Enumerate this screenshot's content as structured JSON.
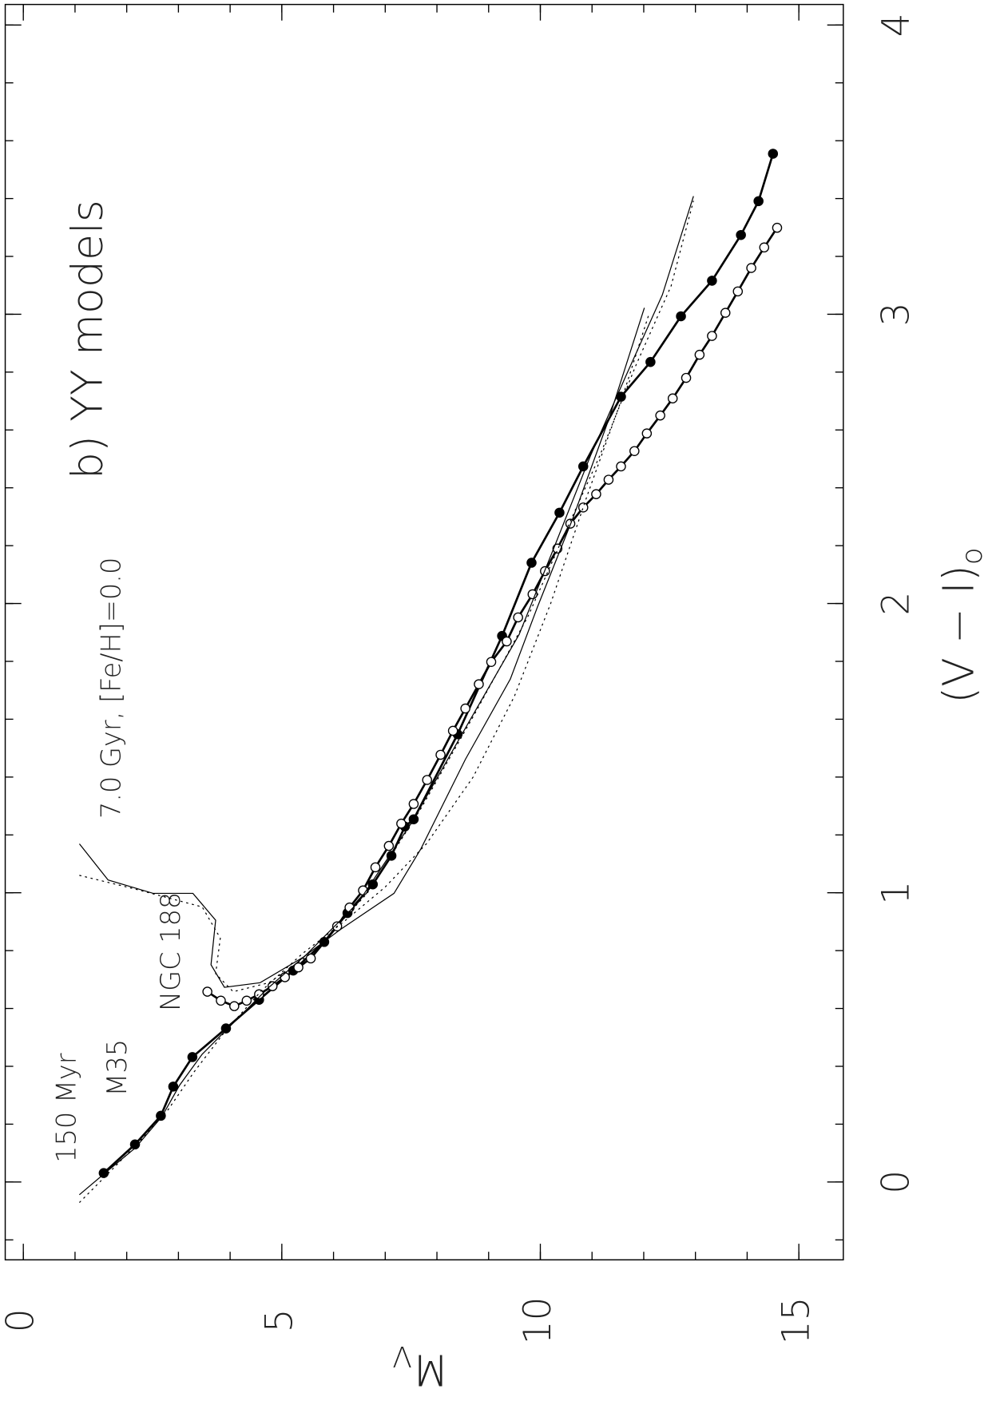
{
  "chart_data": {
    "type": "line",
    "title": "b) YY models",
    "annotations": [
      "7.0 Gyr, [Fe/H]=0.0",
      "NGC 188",
      "150 Myr",
      "M35"
    ],
    "xlabel": "M",
    "xlabel_sub": "V",
    "ylabel": "(V − I)",
    "ylabel_sub": "o",
    "xlim": [
      -0.35,
      15.86
    ],
    "ylim": [
      -0.269,
      4.071
    ],
    "xticks": [
      0,
      5,
      10,
      15
    ],
    "xminorticks": [
      0,
      1,
      2,
      3,
      4,
      5,
      6,
      7,
      8,
      9,
      10,
      11,
      12,
      13,
      14,
      15
    ],
    "yticks": [
      0,
      1,
      2,
      3,
      4
    ],
    "yminorticks": [
      -0.2,
      0,
      0.2,
      0.4,
      0.6,
      0.8,
      1,
      1.2,
      1.4,
      1.6,
      1.8,
      2,
      2.2,
      2.4,
      2.6,
      2.8,
      3,
      3.2,
      3.4,
      3.6,
      3.8,
      4
    ],
    "series": [
      {
        "color": "#000",
        "marker": "filled",
        "dash": "solid",
        "x": [
          1.555,
          2.16,
          2.66,
          2.9,
          3.27,
          3.92,
          4.56,
          5.22,
          5.82,
          6.27,
          6.76,
          7.12,
          7.38,
          7.55,
          8.4,
          9.26,
          9.83,
          10.37,
          10.83,
          11.56,
          12.13,
          12.72,
          13.32,
          13.88,
          14.22,
          14.5
        ],
        "values": [
          0.031,
          0.13,
          0.229,
          0.33,
          0.432,
          0.531,
          0.63,
          0.731,
          0.83,
          0.93,
          1.029,
          1.128,
          1.229,
          1.254,
          1.548,
          1.888,
          2.141,
          2.314,
          2.474,
          2.715,
          2.835,
          2.993,
          3.116,
          3.274,
          3.391,
          3.555
        ]
      },
      {
        "color": "#000",
        "marker": "open",
        "dash": "solid",
        "x": [
          3.56,
          3.82,
          4.08,
          4.32,
          4.56,
          4.82,
          5.06,
          5.32,
          5.56,
          6.07,
          6.31,
          6.57,
          6.81,
          7.07,
          7.31,
          7.55,
          7.81,
          8.07,
          8.31,
          8.55,
          8.81,
          9.05,
          9.35,
          9.57,
          9.85,
          10.09,
          10.33,
          10.58,
          10.83,
          11.08,
          11.32,
          11.56,
          11.82,
          12.06,
          12.32,
          12.56,
          12.82,
          13.08,
          13.32,
          13.58,
          13.82,
          14.08,
          14.33,
          14.58
        ],
        "values": [
          0.658,
          0.627,
          0.608,
          0.627,
          0.649,
          0.677,
          0.708,
          0.742,
          0.773,
          0.884,
          0.949,
          1.008,
          1.088,
          1.162,
          1.239,
          1.307,
          1.39,
          1.477,
          1.56,
          1.637,
          1.721,
          1.798,
          1.869,
          1.952,
          2.032,
          2.112,
          2.19,
          2.276,
          2.332,
          2.378,
          2.428,
          2.474,
          2.527,
          2.588,
          2.65,
          2.709,
          2.78,
          2.86,
          2.925,
          3.005,
          3.079,
          3.16,
          3.231,
          3.299
        ]
      },
      {
        "color": "#000",
        "marker": "none",
        "dash": "solid",
        "x": [
          1.09,
          1.64,
          2.16,
          2.68,
          3.02,
          3.46,
          4.06,
          4.75,
          5.44,
          6.14,
          7.17,
          7.69,
          8.55,
          9.42,
          9.94,
          10.63,
          11.32,
          12.01
        ],
        "values": [
          -0.043,
          0.04,
          0.117,
          0.226,
          0.334,
          0.442,
          0.55,
          0.673,
          0.781,
          0.874,
          0.998,
          1.152,
          1.461,
          1.739,
          1.986,
          2.295,
          2.635,
          3.021
        ]
      },
      {
        "color": "#000",
        "marker": "none",
        "dash": "dotted",
        "x": [
          1.09,
          1.7,
          2.3,
          2.8,
          3.3,
          3.9,
          4.6,
          5.4,
          6.2,
          7.0,
          7.8,
          8.7,
          9.5,
          10.2,
          10.9,
          11.6,
          12.1
        ],
        "values": [
          -0.07,
          0.04,
          0.15,
          0.25,
          0.38,
          0.52,
          0.66,
          0.79,
          0.9,
          1.02,
          1.17,
          1.4,
          1.68,
          2.0,
          2.37,
          2.72,
          3.0
        ]
      },
      {
        "color": "#000",
        "marker": "none",
        "dash": "solid",
        "x": [
          1.09,
          1.64,
          2.51,
          3.28,
          3.72,
          3.63,
          3.89,
          4.58,
          5.44,
          6.48,
          7.52,
          8.55,
          9.59,
          10.28,
          10.97,
          11.66,
          12.36,
          12.96
        ],
        "values": [
          1.168,
          1.044,
          0.998,
          0.998,
          0.905,
          0.751,
          0.673,
          0.689,
          0.78,
          0.967,
          1.245,
          1.569,
          1.893,
          2.2,
          2.511,
          2.789,
          3.067,
          3.407
        ]
      },
      {
        "color": "#000",
        "marker": "none",
        "dash": "dotted",
        "x": [
          1.09,
          2.16,
          3.46,
          3.81,
          3.72,
          4.06,
          4.75,
          5.62,
          6.65,
          7.69,
          8.72,
          9.76,
          10.45,
          11.15,
          11.84,
          12.53,
          12.96
        ],
        "values": [
          1.06,
          1.013,
          0.951,
          0.843,
          0.72,
          0.658,
          0.689,
          0.797,
          0.998,
          1.291,
          1.615,
          1.955,
          2.233,
          2.511,
          2.82,
          3.098,
          3.391
        ]
      }
    ]
  }
}
